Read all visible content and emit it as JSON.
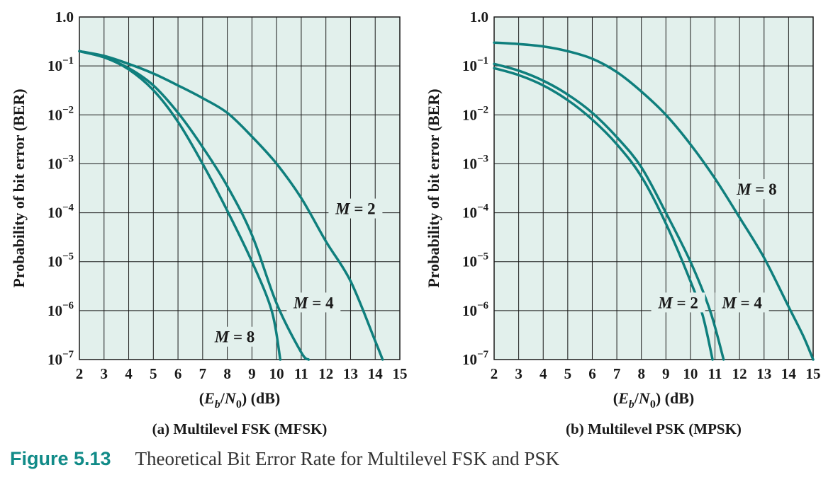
{
  "chart_data": [
    {
      "type": "line",
      "panel_caption": "(a) Multilevel FSK (MFSK)",
      "xlabel": "(Eb/N0) (dB)",
      "ylabel": "Probability of bit error (BER)",
      "xlim": [
        2,
        15
      ],
      "ylim": [
        1e-07,
        1.0
      ],
      "y_scale": "log",
      "grid": true,
      "x_ticks": [
        "2",
        "3",
        "4",
        "5",
        "6",
        "7",
        "8",
        "9",
        "10",
        "11",
        "12",
        "13",
        "14",
        "15"
      ],
      "y_ticks": [
        {
          "base": "1.0",
          "exp": ""
        },
        {
          "base": "10",
          "exp": "−1"
        },
        {
          "base": "10",
          "exp": "−2"
        },
        {
          "base": "10",
          "exp": "−3"
        },
        {
          "base": "10",
          "exp": "−4"
        },
        {
          "base": "10",
          "exp": "−5"
        },
        {
          "base": "10",
          "exp": "−6"
        },
        {
          "base": "10",
          "exp": "−7"
        }
      ],
      "series": [
        {
          "name": "M = 2",
          "x": [
            2,
            3,
            4,
            5,
            6,
            7,
            8,
            9,
            10,
            11,
            12,
            13,
            14,
            14.3
          ],
          "y": [
            0.2,
            0.16,
            0.11,
            0.07,
            0.04,
            0.022,
            0.011,
            0.0036,
            0.001,
            0.0002,
            2.6e-05,
            4e-06,
            2.4e-07,
            1e-07
          ]
        },
        {
          "name": "M = 4",
          "x": [
            2,
            3,
            4,
            5,
            6,
            7,
            8,
            9,
            10,
            11,
            11.3
          ],
          "y": [
            0.2,
            0.15,
            0.09,
            0.04,
            0.011,
            0.0022,
            0.00035,
            3.5e-05,
            1.4e-06,
            1.4e-07,
            1e-07
          ]
        },
        {
          "name": "M = 8",
          "x": [
            2,
            3,
            4,
            5,
            6,
            7,
            8,
            9,
            9.8,
            10.15
          ],
          "y": [
            0.2,
            0.15,
            0.085,
            0.032,
            0.0072,
            0.001,
            0.00011,
            1e-05,
            1e-06,
            1e-07
          ]
        }
      ],
      "annotations": [
        {
          "text": "M = 2",
          "x": 13.2,
          "y": 0.0001
        },
        {
          "text": "M = 4",
          "x": 11.5,
          "y": 1.2e-06
        },
        {
          "text": "M = 8",
          "x": 8.3,
          "y": 2.4e-07
        }
      ]
    },
    {
      "type": "line",
      "panel_caption": "(b) Multilevel PSK (MPSK)",
      "xlabel": "(Eb/N0) (dB)",
      "ylabel": "Probability of bit error (BER)",
      "xlim": [
        2,
        15
      ],
      "ylim": [
        1e-07,
        1.0
      ],
      "y_scale": "log",
      "grid": true,
      "x_ticks": [
        "2",
        "3",
        "4",
        "5",
        "6",
        "7",
        "8",
        "9",
        "10",
        "11",
        "12",
        "13",
        "14",
        "15"
      ],
      "y_ticks": [
        {
          "base": "1.0",
          "exp": ""
        },
        {
          "base": "10",
          "exp": "−1"
        },
        {
          "base": "10",
          "exp": "−2"
        },
        {
          "base": "10",
          "exp": "−3"
        },
        {
          "base": "10",
          "exp": "−4"
        },
        {
          "base": "10",
          "exp": "−5"
        },
        {
          "base": "10",
          "exp": "−6"
        },
        {
          "base": "10",
          "exp": "−7"
        }
      ],
      "series": [
        {
          "name": "M = 2",
          "x": [
            2,
            3,
            4,
            5,
            6,
            7,
            8,
            9,
            10,
            10.5,
            10.9
          ],
          "y": [
            0.09,
            0.065,
            0.04,
            0.02,
            0.008,
            0.0025,
            0.00055,
            6e-05,
            4e-06,
            8e-07,
            1e-07
          ]
        },
        {
          "name": "M = 4",
          "x": [
            2,
            3,
            4,
            5,
            6,
            7,
            8,
            9,
            10,
            10.8,
            11.35
          ],
          "y": [
            0.11,
            0.08,
            0.05,
            0.026,
            0.011,
            0.0035,
            0.00085,
            0.0001,
            1e-05,
            1e-06,
            1e-07
          ]
        },
        {
          "name": "M = 8",
          "x": [
            2,
            3,
            4,
            5,
            6,
            7,
            8,
            9,
            10,
            11,
            12,
            13,
            14,
            14.6,
            15
          ],
          "y": [
            0.3,
            0.28,
            0.25,
            0.2,
            0.14,
            0.075,
            0.03,
            0.01,
            0.0025,
            0.0005,
            8e-05,
            1.2e-05,
            1.2e-06,
            3e-07,
            1e-07
          ]
        }
      ],
      "annotations": [
        {
          "text": "M = 8",
          "x": 12.7,
          "y": 0.00025
        },
        {
          "text": "M = 2",
          "x": 9.5,
          "y": 1.2e-06
        },
        {
          "text": "M = 4",
          "x": 12.1,
          "y": 1.2e-06
        }
      ]
    }
  ],
  "figure": {
    "number": "Figure 5.13",
    "title": "Theoretical Bit Error Rate for Multilevel FSK and PSK"
  },
  "colors": {
    "plot_background": "#e2f0ec",
    "grid": "#1a1a1a",
    "curve": "#0f7f7d",
    "figure_number": "#118b88",
    "text": "#1a1a1a"
  }
}
